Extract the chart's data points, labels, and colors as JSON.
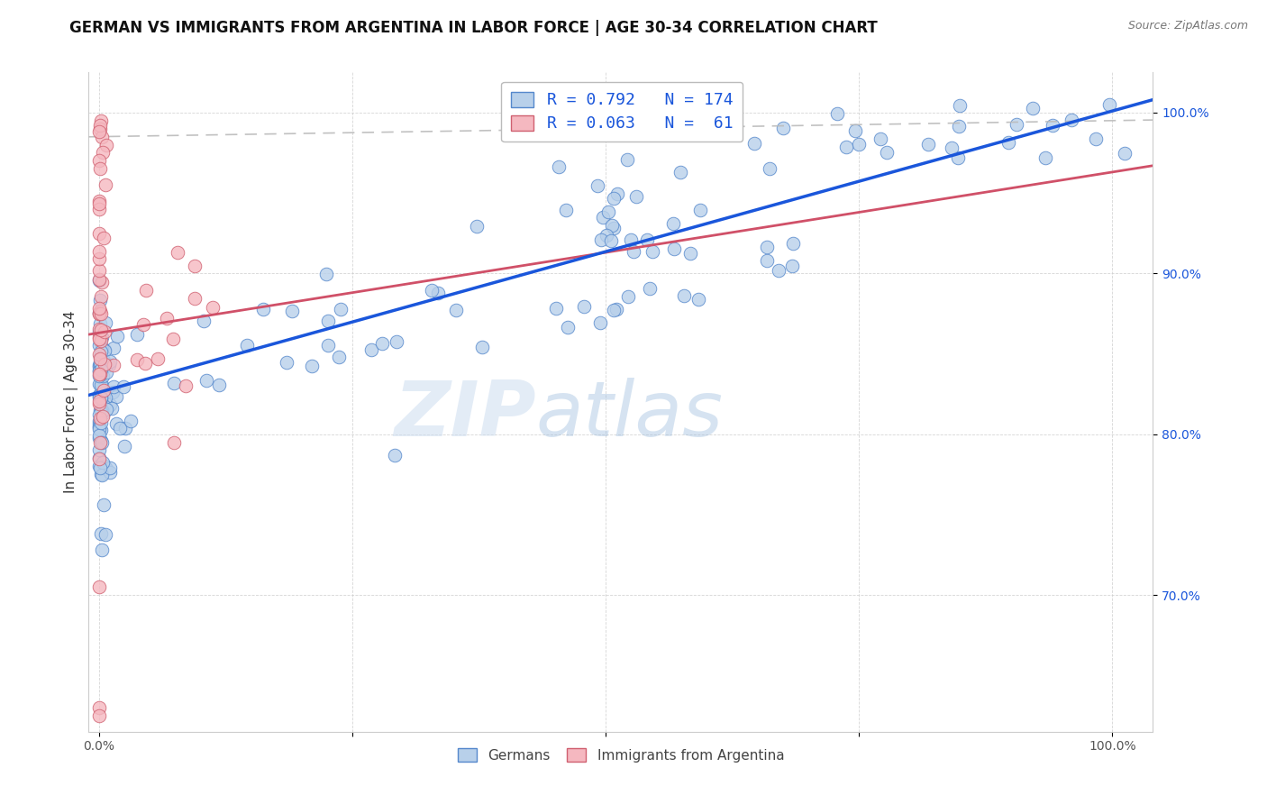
{
  "title": "GERMAN VS IMMIGRANTS FROM ARGENTINA IN LABOR FORCE | AGE 30-34 CORRELATION CHART",
  "source": "Source: ZipAtlas.com",
  "ylabel": "In Labor Force | Age 30-34",
  "ytick_labels": [
    "70.0%",
    "80.0%",
    "90.0%",
    "100.0%"
  ],
  "ytick_positions": [
    0.7,
    0.8,
    0.9,
    1.0
  ],
  "xlim": [
    -0.01,
    1.04
  ],
  "ylim": [
    0.615,
    1.025
  ],
  "german_R": "0.792",
  "german_N": "174",
  "argentina_R": "0.063",
  "argentina_N": "61",
  "german_color": "#b8d0ea",
  "german_edge_color": "#5588cc",
  "german_line_color": "#1a56db",
  "argentina_color": "#f5b8c0",
  "argentina_edge_color": "#d06070",
  "argentina_line_color": "#d05068",
  "watermark_zip": "ZIP",
  "watermark_atlas": "atlas",
  "watermark_color_zip": "#c5d8ee",
  "watermark_color_atlas": "#98b8d8",
  "title_fontsize": 12,
  "axis_label_fontsize": 11,
  "tick_fontsize": 10,
  "legend_fontsize": 13,
  "german_slope": 0.175,
  "german_intercept": 0.826,
  "argentina_slope": 0.1,
  "argentina_intercept": 0.863
}
